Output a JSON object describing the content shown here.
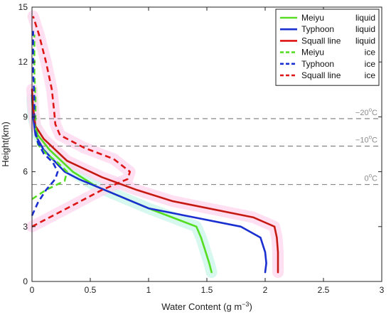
{
  "chart_data": {
    "type": "line",
    "xlabel": "Water Content (g m",
    "xlabel_sup": "−3",
    "xlabel_tail": ")",
    "ylabel": "Height(km)",
    "xlim": [
      0,
      3
    ],
    "ylim": [
      0,
      15
    ],
    "xticks": [
      0,
      0.5,
      1,
      1.5,
      2,
      2.5,
      3
    ],
    "xtick_labels": [
      "0",
      "0.5",
      "1",
      "1.5",
      "2",
      "2.5",
      "3"
    ],
    "yticks": [
      0,
      3,
      6,
      9,
      12,
      15
    ],
    "ytick_labels": [
      "0",
      "3",
      "6",
      "9",
      "12",
      "15"
    ],
    "grid": false,
    "legend_position": "top-right",
    "reference_lines": [
      {
        "y": 8.9,
        "prefix": "−20",
        "sup": "o",
        "unit": "C"
      },
      {
        "y": 7.4,
        "prefix": "−10",
        "sup": "o",
        "unit": "C"
      },
      {
        "y": 5.3,
        "prefix": "0",
        "sup": "o",
        "unit": "C"
      }
    ],
    "series": [
      {
        "name": "Meiyu",
        "phase": "liquid",
        "color": "#55dd22",
        "dash": "solid",
        "halo": "#c8f5e8",
        "points": [
          [
            1.54,
            0.5
          ],
          [
            1.52,
            1.0
          ],
          [
            1.49,
            1.6
          ],
          [
            1.45,
            2.4
          ],
          [
            1.41,
            3.0
          ],
          [
            1.0,
            4.0
          ],
          [
            0.55,
            5.2
          ],
          [
            0.35,
            6.0
          ],
          [
            0.15,
            7.2
          ],
          [
            0.05,
            8.0
          ],
          [
            0.01,
            9.0
          ],
          [
            0.0,
            10.0
          ]
        ]
      },
      {
        "name": "Typhoon",
        "phase": "liquid",
        "color": "#1a2fd0",
        "dash": "solid",
        "halo": null,
        "points": [
          [
            2.0,
            0.5
          ],
          [
            2.01,
            1.0
          ],
          [
            2.0,
            1.6
          ],
          [
            1.96,
            2.4
          ],
          [
            1.79,
            3.0
          ],
          [
            1.0,
            4.0
          ],
          [
            0.4,
            5.6
          ],
          [
            0.28,
            6.0
          ],
          [
            0.1,
            7.2
          ],
          [
            0.03,
            8.0
          ],
          [
            0.01,
            9.0
          ],
          [
            0.0,
            10.2
          ]
        ]
      },
      {
        "name": "Squall line",
        "phase": "liquid",
        "color": "#dd1515",
        "dash": "solid",
        "halo": "#ffd6ee",
        "points": [
          [
            2.11,
            0.5
          ],
          [
            2.11,
            1.0
          ],
          [
            2.11,
            1.6
          ],
          [
            2.1,
            2.4
          ],
          [
            2.08,
            3.0
          ],
          [
            1.9,
            3.5
          ],
          [
            1.2,
            4.4
          ],
          [
            0.9,
            5.0
          ],
          [
            0.6,
            5.7
          ],
          [
            0.3,
            6.6
          ],
          [
            0.1,
            7.8
          ],
          [
            0.03,
            8.5
          ],
          [
            0.01,
            9.5
          ],
          [
            0.0,
            10.5
          ]
        ]
      },
      {
        "name": "Meiyu",
        "phase": "ice",
        "color": "#55dd22",
        "dash": "dashed",
        "halo": null,
        "points": [
          [
            0.0,
            4.5
          ],
          [
            0.12,
            5.0
          ],
          [
            0.28,
            5.5
          ],
          [
            0.3,
            6.0
          ],
          [
            0.22,
            6.5
          ],
          [
            0.12,
            7.0
          ],
          [
            0.05,
            7.5
          ],
          [
            0.03,
            8.5
          ],
          [
            0.03,
            10.0
          ],
          [
            0.02,
            11.5
          ],
          [
            0.02,
            13.5
          ]
        ]
      },
      {
        "name": "Typhoon",
        "phase": "ice",
        "color": "#1a2fd0",
        "dash": "dashed",
        "halo": null,
        "points": [
          [
            0.0,
            3.6
          ],
          [
            0.05,
            4.3
          ],
          [
            0.12,
            5.0
          ],
          [
            0.2,
            5.6
          ],
          [
            0.22,
            6.0
          ],
          [
            0.18,
            6.5
          ],
          [
            0.1,
            7.0
          ],
          [
            0.05,
            7.6
          ],
          [
            0.02,
            8.5
          ],
          [
            0.02,
            10.0
          ],
          [
            0.01,
            11.5
          ],
          [
            0.01,
            13.7
          ]
        ]
      },
      {
        "name": "Squall line",
        "phase": "ice",
        "color": "#dd1515",
        "dash": "dashed",
        "halo": "#ffd6ee",
        "points": [
          [
            0.0,
            3.0
          ],
          [
            0.3,
            4.0
          ],
          [
            0.6,
            5.0
          ],
          [
            0.82,
            5.6
          ],
          [
            0.84,
            6.0
          ],
          [
            0.7,
            6.7
          ],
          [
            0.45,
            7.3
          ],
          [
            0.24,
            8.0
          ],
          [
            0.2,
            8.6
          ],
          [
            0.19,
            9.3
          ],
          [
            0.17,
            10.5
          ],
          [
            0.12,
            12.0
          ],
          [
            0.06,
            13.5
          ],
          [
            0.01,
            14.5
          ]
        ]
      }
    ]
  }
}
